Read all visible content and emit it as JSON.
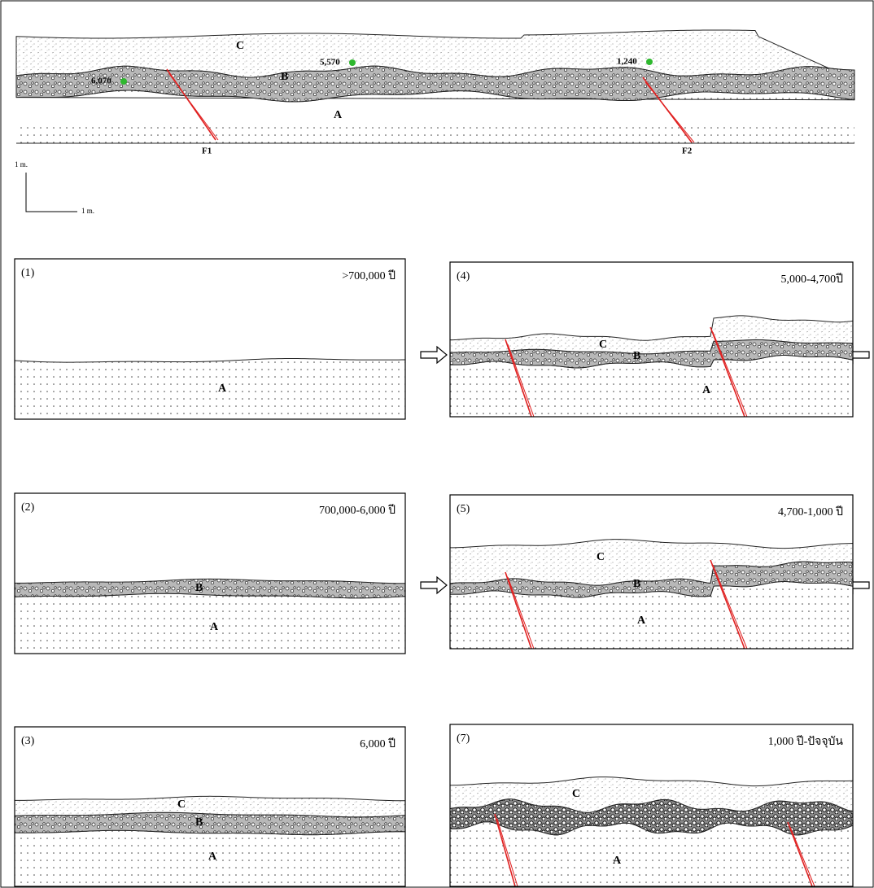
{
  "section": {
    "layers": [
      "C",
      "B",
      "A"
    ],
    "samples": [
      "6,070",
      "5,570",
      "1,240"
    ],
    "faults": [
      "F1",
      "F2"
    ]
  },
  "scale": {
    "vertical": "1 m.",
    "horizontal": "1 m."
  },
  "panels": [
    {
      "number": "(1)",
      "age": ">700,000 ปี",
      "layers": [
        "A"
      ]
    },
    {
      "number": "(2)",
      "age": "700,000-6,000 ปี",
      "layers": [
        "B",
        "A"
      ]
    },
    {
      "number": "(3)",
      "age": "6,000 ปี",
      "layers": [
        "C",
        "B",
        "A"
      ]
    },
    {
      "number": "(4)",
      "age": "5,000-4,700ปี",
      "layers": [
        "C",
        "B",
        "A"
      ]
    },
    {
      "number": "(5)",
      "age": "4,700-1,000 ปี",
      "layers": [
        "C",
        "B",
        "A"
      ]
    },
    {
      "number": "(7)",
      "age": "1,000 ปี-ปัจจุบัน",
      "layers": [
        "C",
        "A"
      ]
    }
  ]
}
